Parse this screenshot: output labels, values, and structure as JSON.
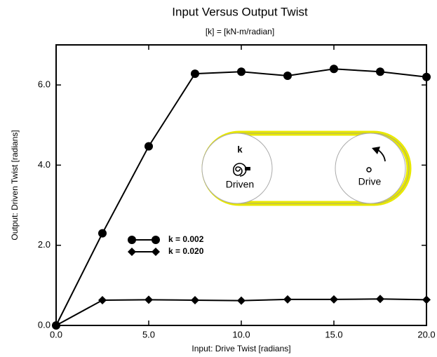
{
  "chart_data": {
    "type": "line",
    "title": "Input Versus Output Twist",
    "subtitle": "[k] = [kN-m/radian]",
    "x_label": "Input: Drive Twist [radians]",
    "y_label": "Output: Driven Twist [radians]",
    "x": [
      0,
      2.5,
      5,
      7.5,
      10,
      12.5,
      15,
      17.5,
      20
    ],
    "series": [
      {
        "name": "k = 0.002",
        "color": "#000000",
        "marker": "circle",
        "values": [
          0,
          2.3,
          4.47,
          6.28,
          6.33,
          6.23,
          6.4,
          6.33,
          6.2
        ]
      },
      {
        "name": "k = 0.020",
        "color": "#000000",
        "marker": "diamond",
        "values": [
          0,
          0.63,
          0.64,
          0.63,
          0.62,
          0.65,
          0.65,
          0.66,
          0.64
        ]
      }
    ],
    "xlim": [
      0,
      20
    ],
    "ylim": [
      0,
      7
    ],
    "xticks": [
      {
        "value": 0,
        "label": "0.0"
      },
      {
        "value": 5,
        "label": "5.0"
      },
      {
        "value": 10,
        "label": "10.0"
      },
      {
        "value": 15,
        "label": "15.0"
      },
      {
        "value": 20,
        "label": "20.0"
      }
    ],
    "yticks": [
      {
        "value": 0,
        "label": "0.0"
      },
      {
        "value": 2,
        "label": "2.0"
      },
      {
        "value": 4,
        "label": "4.0"
      },
      {
        "value": 6,
        "label": "6.0"
      }
    ],
    "grid": false,
    "legend": "center-left"
  },
  "inset": {
    "k_label": "k",
    "driven_label": "Driven",
    "drive_label": "Drive"
  }
}
